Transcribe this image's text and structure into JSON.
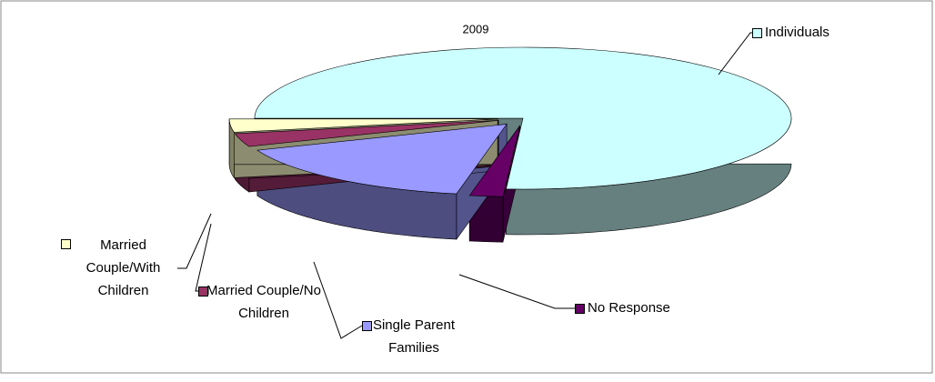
{
  "chart_data": {
    "type": "pie3d",
    "title": "2009",
    "categories": [
      "Individuals",
      "No Response",
      "Single Parent Families",
      "Married Couple/No Children",
      "Married Couple/With Children"
    ],
    "values": [
      76,
      2,
      16,
      3,
      3
    ],
    "colors": [
      "#ccffff",
      "#660066",
      "#9999ff",
      "#993366",
      "#ffffcc"
    ]
  }
}
